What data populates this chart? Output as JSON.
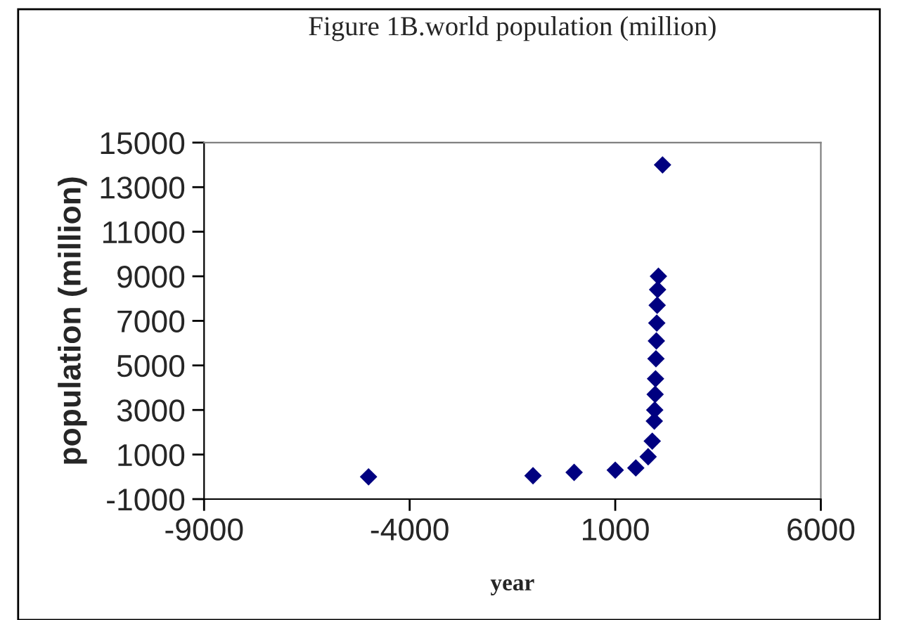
{
  "chart_data": {
    "type": "scatter",
    "title": "Figure 1B.world population (million)",
    "xlabel": "year",
    "ylabel": "population (million)",
    "x": [
      -5000,
      -1000,
      0,
      1000,
      1500,
      1800,
      1900,
      1950,
      1960,
      1970,
      1980,
      1990,
      2000,
      2010,
      2020,
      2030,
      2050,
      2150
    ],
    "series": [
      {
        "color": "#000080",
        "values": [
          0,
          50,
          200,
          300,
          400,
          900,
          1600,
          2500,
          3000,
          3700,
          4400,
          5300,
          6100,
          6900,
          7700,
          8400,
          9000,
          14000
        ]
      }
    ],
    "xlim": [
      -9000,
      6000
    ],
    "xticks": [
      -9000,
      -4000,
      1000,
      6000
    ],
    "ylim": [
      -1000,
      15000
    ],
    "yticks": [
      -1000,
      1000,
      3000,
      5000,
      7000,
      9000,
      11000,
      13000,
      15000
    ],
    "marker": "diamond",
    "grid": false,
    "legend": false
  }
}
